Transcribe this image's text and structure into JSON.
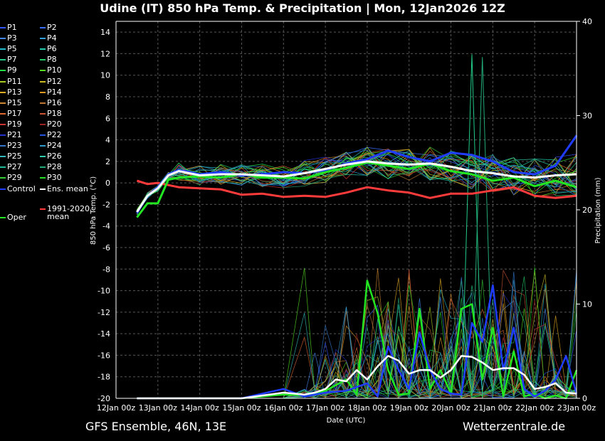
{
  "header": {
    "title": "Udine  (IT)  850 hPa Temp. & Precipitation | Mon, 12Jan2026 12Z"
  },
  "footer": {
    "left": "GFS Ensemble, 46N, 13E",
    "right": "Wetterzentrale.de"
  },
  "colors": {
    "control": "#1f3cff",
    "ens_mean": "#ffffff",
    "climate_mean": "#ff3b3b",
    "oper": "#22e622",
    "grid": "#555555"
  },
  "legend": [
    {
      "label": "P1",
      "color": "#3355ff"
    },
    {
      "label": "P2",
      "color": "#3a6dff"
    },
    {
      "label": "P3",
      "color": "#4488ee"
    },
    {
      "label": "P4",
      "color": "#33a0dd"
    },
    {
      "label": "P5",
      "color": "#22bbcc"
    },
    {
      "label": "P6",
      "color": "#22ccaa"
    },
    {
      "label": "P7",
      "color": "#22cc88"
    },
    {
      "label": "P8",
      "color": "#22cc66"
    },
    {
      "label": "P9",
      "color": "#22dd44"
    },
    {
      "label": "P10",
      "color": "#55dd22"
    },
    {
      "label": "P11",
      "color": "#aacc22"
    },
    {
      "label": "P12",
      "color": "#ccbb22"
    },
    {
      "label": "P13",
      "color": "#ddaa22"
    },
    {
      "label": "P14",
      "color": "#dd9922"
    },
    {
      "label": "P15",
      "color": "#cc8833"
    },
    {
      "label": "P16",
      "color": "#bb7733"
    },
    {
      "label": "P17",
      "color": "#dd6633"
    },
    {
      "label": "P18",
      "color": "#cc5533"
    },
    {
      "label": "P19",
      "color": "#cc3333"
    },
    {
      "label": "P20",
      "color": "#992222"
    },
    {
      "label": "P21",
      "color": "#2233cc"
    },
    {
      "label": "P22",
      "color": "#2255dd"
    },
    {
      "label": "P23",
      "color": "#3377cc"
    },
    {
      "label": "P24",
      "color": "#3399cc"
    },
    {
      "label": "P25",
      "color": "#33bbbb"
    },
    {
      "label": "P26",
      "color": "#33ccaa"
    },
    {
      "label": "P27",
      "color": "#22bb99"
    },
    {
      "label": "P28",
      "color": "#22aa77"
    },
    {
      "label": "P29",
      "color": "#33cc33"
    },
    {
      "label": "P30",
      "color": "#22dd22"
    },
    {
      "label": "Control",
      "color": "#1f3cff"
    },
    {
      "label": "Ens. mean",
      "color": "#ffffff"
    },
    {
      "label": "1991-2020",
      "color": "#ff3b3b"
    },
    {
      "label": "Oper",
      "color": "#22e622"
    }
  ],
  "legend_extra": {
    "climate_line2": "mean"
  },
  "chart_data": {
    "type": "line",
    "title": "Udine  (IT)  850 hPa Temp. & Precipitation | Mon, 12Jan2026 12Z",
    "xlabel": "Date (UTC)",
    "ylabel": "850 hPa Temp. (°C)",
    "y2label": "Precipitation (mm)",
    "ylim": [
      -20,
      15
    ],
    "y2lim": [
      0,
      40
    ],
    "yticks": [
      -20,
      -18,
      -16,
      -14,
      -12,
      -10,
      -8,
      -6,
      -4,
      -2,
      0,
      2,
      4,
      6,
      8,
      10,
      12,
      14
    ],
    "y2ticks": [
      0,
      10,
      20,
      30,
      40
    ],
    "xlim_hours": [
      0,
      264
    ],
    "x_ticks": [
      "12Jan 00z",
      "13Jan 00z",
      "14Jan 00z",
      "15Jan 00z",
      "16Jan 00z",
      "17Jan 00z",
      "18Jan 00z",
      "19Jan 00z",
      "20Jan 00z",
      "21Jan 00z",
      "22Jan 00z",
      "23Jan 00z"
    ],
    "grid": true,
    "series": [
      {
        "name": "Control",
        "axis": "temp",
        "x": [
          12,
          18,
          24,
          30,
          36,
          48,
          60,
          72,
          84,
          96,
          108,
          120,
          132,
          144,
          156,
          168,
          180,
          192,
          204,
          216,
          228,
          240,
          252,
          264
        ],
        "values": [
          -2.8,
          -1.2,
          -0.4,
          0.8,
          1.2,
          0.8,
          1.0,
          0.7,
          0.8,
          1.0,
          0.9,
          1.2,
          1.8,
          2.2,
          3.0,
          2.4,
          2.0,
          2.8,
          2.6,
          2.0,
          1.0,
          0.8,
          1.6,
          4.4
        ]
      },
      {
        "name": "Ens. mean",
        "axis": "temp",
        "x": [
          12,
          18,
          24,
          30,
          36,
          48,
          60,
          72,
          84,
          96,
          108,
          120,
          132,
          144,
          156,
          168,
          180,
          192,
          204,
          216,
          228,
          240,
          252,
          264
        ],
        "values": [
          -2.7,
          -1.2,
          -0.5,
          0.7,
          1.1,
          0.7,
          0.8,
          0.8,
          0.7,
          0.6,
          0.9,
          1.3,
          1.7,
          2.0,
          1.8,
          1.7,
          1.8,
          1.5,
          1.1,
          0.9,
          0.6,
          0.5,
          0.7,
          0.8
        ]
      },
      {
        "name": "1991-2020 mean",
        "axis": "temp",
        "x": [
          12,
          18,
          24,
          30,
          36,
          48,
          60,
          72,
          84,
          96,
          108,
          120,
          132,
          144,
          156,
          168,
          180,
          192,
          204,
          216,
          228,
          240,
          252,
          264
        ],
        "values": [
          0.2,
          -0.1,
          0.0,
          -0.2,
          -0.4,
          -0.5,
          -0.6,
          -1.1,
          -1.0,
          -1.3,
          -1.2,
          -1.3,
          -0.9,
          -0.4,
          -0.7,
          -0.9,
          -1.4,
          -1.0,
          -1.0,
          -0.7,
          -0.4,
          -1.2,
          -1.4,
          -1.2
        ]
      },
      {
        "name": "Oper",
        "axis": "temp",
        "x": [
          12,
          18,
          24,
          30,
          36,
          48,
          60,
          72,
          84,
          96,
          108,
          120,
          132,
          144,
          156,
          168,
          180,
          192,
          204,
          216,
          228,
          240,
          252,
          264
        ],
        "values": [
          -3.2,
          -1.9,
          -1.9,
          0.3,
          0.5,
          0.6,
          0.5,
          0.8,
          0.5,
          0.5,
          0.4,
          1.0,
          1.4,
          1.9,
          1.6,
          1.3,
          1.8,
          1.1,
          0.8,
          0.2,
          0.5,
          -0.3,
          0.2,
          -0.4
        ]
      },
      {
        "name": "Ens. mean precip",
        "axis": "precip",
        "x": [
          12,
          24,
          36,
          48,
          60,
          72,
          84,
          96,
          108,
          114,
          120,
          126,
          132,
          138,
          144,
          150,
          156,
          162,
          168,
          174,
          180,
          186,
          192,
          198,
          204,
          210,
          216,
          222,
          228,
          234,
          240,
          246,
          252,
          258,
          264
        ],
        "values": [
          0,
          0,
          0,
          0,
          0,
          0,
          0.3,
          0.6,
          0.4,
          0.6,
          1.0,
          2.0,
          1.8,
          3.0,
          2.0,
          3.4,
          4.5,
          4.0,
          2.6,
          3.0,
          3.0,
          2.2,
          3.0,
          4.5,
          4.4,
          3.8,
          3.0,
          3.2,
          3.2,
          2.5,
          1.0,
          1.2,
          1.6,
          0.6,
          0.5
        ]
      },
      {
        "name": "Control precip",
        "axis": "precip",
        "x": [
          12,
          24,
          36,
          48,
          60,
          72,
          84,
          96,
          108,
          120,
          132,
          144,
          150,
          156,
          162,
          168,
          174,
          180,
          186,
          192,
          198,
          204,
          210,
          216,
          222,
          228,
          234,
          240,
          246,
          252,
          258,
          264
        ],
        "values": [
          0,
          0,
          0,
          0,
          0,
          0,
          0.5,
          1.0,
          0.2,
          0.6,
          0.8,
          1.6,
          0.2,
          5.5,
          3.0,
          1.0,
          7.0,
          3.0,
          1.0,
          0.5,
          0.4,
          8.0,
          6.0,
          12.0,
          3.0,
          7.5,
          1.0,
          0.2,
          0.8,
          2.0,
          4.5,
          0.5
        ]
      },
      {
        "name": "Oper precip",
        "axis": "precip",
        "x": [
          12,
          24,
          36,
          48,
          60,
          72,
          84,
          96,
          108,
          120,
          132,
          138,
          144,
          150,
          156,
          162,
          168,
          174,
          180,
          186,
          192,
          198,
          204,
          210,
          216,
          222,
          228,
          234,
          240,
          246,
          252,
          258,
          264
        ],
        "values": [
          0,
          0,
          0,
          0,
          0,
          0,
          0.2,
          0.4,
          0.3,
          0.8,
          2.0,
          0.4,
          12.5,
          9.0,
          3.0,
          0.4,
          0.5,
          9.5,
          1.0,
          3.0,
          0.5,
          9.5,
          10.0,
          2.0,
          7.5,
          0.2,
          5.0,
          0.2,
          0.5,
          0,
          0.3,
          0,
          3.0
        ]
      }
    ],
    "spikes": [
      {
        "name": "P7 precip",
        "axis": "precip",
        "x": [
          198,
          204,
          210
        ],
        "values": [
          0,
          36.5,
          0
        ]
      },
      {
        "name": "P28 precip",
        "axis": "precip",
        "x": [
          204,
          210,
          216
        ],
        "values": [
          0,
          36.2,
          0
        ]
      }
    ]
  }
}
